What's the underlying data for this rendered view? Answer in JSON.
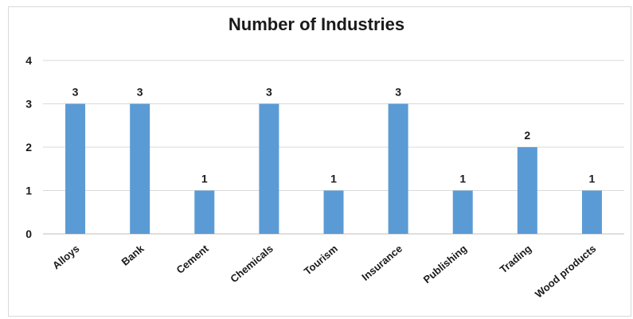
{
  "chart_data": {
    "type": "bar",
    "title": "Number of Industries",
    "categories": [
      "Alloys",
      "Bank",
      "Cement",
      "Chemicals",
      "Tourism",
      "Insurance",
      "Publishing",
      "Trading",
      "Wood products"
    ],
    "values": [
      3,
      3,
      1,
      3,
      1,
      3,
      1,
      2,
      1
    ],
    "data_labels": [
      "3",
      "3",
      "1",
      "3",
      "1",
      "3",
      "1",
      "2",
      "1"
    ],
    "y_ticks": [
      "0",
      "1",
      "2",
      "3",
      "4"
    ],
    "ylim": [
      0,
      4
    ],
    "grid": true,
    "legend": "none",
    "xlabel": "",
    "ylabel": "",
    "colors": {
      "bar": "#5b9bd5",
      "grid": "#d9d9d9",
      "axis": "#bfbfbf",
      "text": "#1a1a1a"
    }
  }
}
